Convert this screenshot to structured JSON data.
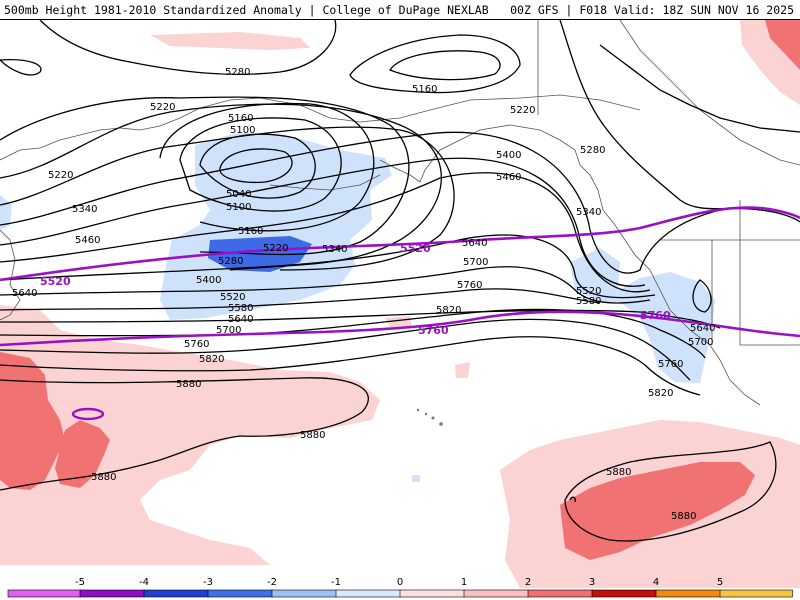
{
  "header": {
    "left": "500mb Height 1981-2010 Standardized Anomaly | College of DuPage NEXLAB",
    "right": "00Z GFS | F018 Valid: 18Z SUN NOV 16 2025"
  },
  "contour_labels": [
    "5280",
    "5160",
    "5220",
    "5160",
    "5100",
    "5220",
    "5040",
    "5100",
    "5340",
    "5460",
    "5160",
    "5220",
    "5280",
    "5340",
    "5400",
    "5520",
    "5580",
    "5640",
    "5700",
    "5760",
    "5820",
    "5880",
    "5640",
    "5700",
    "5760",
    "5820",
    "5880",
    "5220",
    "5280",
    "5400",
    "5460",
    "5340",
    "5520",
    "5580",
    "5640",
    "5700",
    "5760",
    "5820",
    "5880",
    "5880"
  ],
  "purple_labels": [
    "5520",
    "5520",
    "5760",
    "5760"
  ],
  "colorbar": {
    "ticks": [
      "-5",
      "-4",
      "-3",
      "-2",
      "-1",
      "0",
      "1",
      "2",
      "3",
      "4",
      "5"
    ],
    "colors": [
      "#e060f0",
      "#8a10c0",
      "#2040d0",
      "#3f6ee8",
      "#9cc0f5",
      "#d8e8fd",
      "#fde0e0",
      "#f8c0c0",
      "#f07070",
      "#c01010",
      "#f08a10",
      "#f5c542"
    ]
  },
  "colors": {
    "neg_light": "#cfe2fb",
    "neg_medium": "#3d6ae6",
    "pos_light": "#fbd3d3",
    "pos_medium": "#f07272",
    "contour": "#000000",
    "purple": "#9a10c4",
    "border": "#555555"
  }
}
